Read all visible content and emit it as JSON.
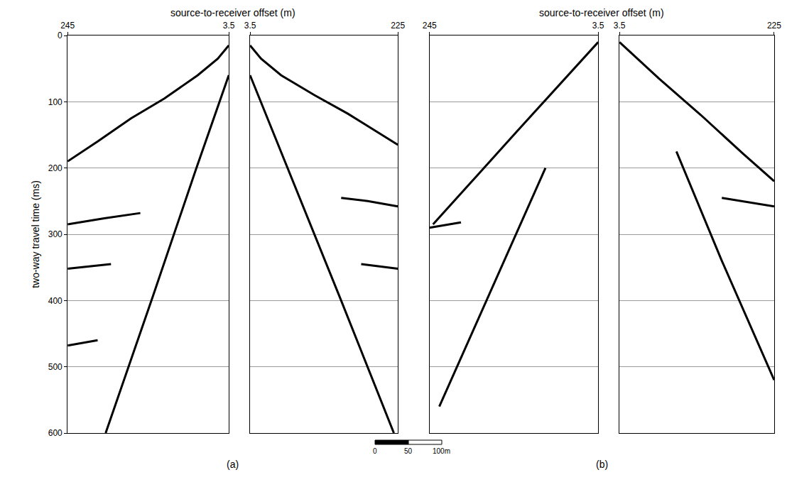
{
  "chart_data": [
    {
      "type": "line",
      "label": "(a)",
      "xlabel": "source-to-receiver offset (m)",
      "ylabel": "two-way travel time (ms)",
      "ylim": [
        600,
        0
      ],
      "yticks": [
        0,
        100,
        200,
        300,
        400,
        500,
        600
      ],
      "grid": true,
      "halves": [
        {
          "xlim": [
            245,
            3.5
          ],
          "xticks": [
            245,
            3.5
          ],
          "series": [
            {
              "color": "#000000",
              "x": [
                3.5,
                20,
                50,
                100,
                150,
                200,
                245
              ],
              "values": [
                15,
                35,
                60,
                95,
                125,
                160,
                190
              ]
            },
            {
              "color": "#000000",
              "x": [
                3.5,
                52,
                116,
                188
              ],
              "values": [
                60,
                200,
                390,
                600
              ]
            },
            {
              "color": "#000000",
              "x": [
                136,
                190,
                245
              ],
              "values": [
                268,
                276,
                285
              ]
            },
            {
              "color": "#000000",
              "x": [
                180,
                245
              ],
              "values": [
                345,
                352
              ]
            },
            {
              "color": "#000000",
              "x": [
                200,
                245
              ],
              "values": [
                460,
                468
              ]
            }
          ]
        },
        {
          "xlim": [
            3.5,
            225
          ],
          "xticks": [
            3.5,
            225
          ],
          "series": [
            {
              "color": "#000000",
              "x": [
                3.5,
                20,
                50,
                100,
                150,
                225
              ],
              "values": [
                15,
                35,
                60,
                90,
                118,
                165
              ]
            },
            {
              "color": "#000000",
              "x": [
                3.5,
                60,
                140,
                219
              ],
              "values": [
                60,
                200,
                400,
                600
              ]
            },
            {
              "color": "#000000",
              "x": [
                140,
                180,
                225
              ],
              "values": [
                245,
                250,
                258
              ]
            },
            {
              "color": "#000000",
              "x": [
                170,
                225
              ],
              "values": [
                345,
                352
              ]
            }
          ]
        }
      ]
    },
    {
      "type": "line",
      "label": "(b)",
      "xlabel": "source-to-receiver offset (m)",
      "ylim": [
        600,
        0
      ],
      "yticks": [
        0,
        100,
        200,
        300,
        400,
        500,
        600
      ],
      "grid": true,
      "tick_labels": "x",
      "halves": [
        {
          "xlim": [
            245,
            3.5
          ],
          "xticks": [
            245,
            3.5
          ],
          "series": [
            {
              "color": "#000000",
              "x": [
                3.5,
                60,
                120,
                180,
                240
              ],
              "values": [
                10,
                75,
                145,
                215,
                285
              ]
            },
            {
              "color": "#000000",
              "x": [
                79,
                155,
                231
              ],
              "values": [
                200,
                380,
                560
              ]
            },
            {
              "color": "#000000",
              "x": [
                200,
                245
              ],
              "values": [
                282,
                290
              ]
            }
          ]
        },
        {
          "xlim": [
            3.5,
            225
          ],
          "xticks": [
            3.5,
            225
          ],
          "series": [
            {
              "color": "#000000",
              "x": [
                3.5,
                60,
                120,
                180,
                225
              ],
              "values": [
                10,
                65,
                120,
                178,
                220
              ]
            },
            {
              "color": "#000000",
              "x": [
                85,
                150,
                225
              ],
              "values": [
                175,
                340,
                520
              ]
            },
            {
              "color": "#000000",
              "x": [
                150,
                225
              ],
              "values": [
                245,
                258
              ]
            }
          ]
        }
      ]
    }
  ],
  "scale_bar": {
    "ticks": [
      0,
      50,
      {
        "value": 100,
        "label": "100m"
      }
    ]
  }
}
